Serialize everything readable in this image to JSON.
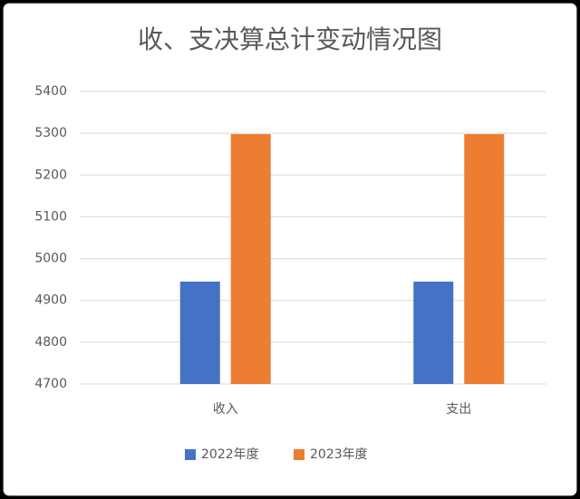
{
  "chart_data": {
    "type": "bar",
    "title": "收、支决算总计变动情况图",
    "categories": [
      "收入",
      "支出"
    ],
    "series": [
      {
        "name": "2022年度",
        "color": "#4472c4",
        "values": [
          4945,
          4945
        ]
      },
      {
        "name": "2023年度",
        "color": "#ed7d31",
        "values": [
          5298,
          5298
        ]
      }
    ],
    "ylim": [
      4700,
      5400
    ],
    "yticks": [
      4700,
      4800,
      4900,
      5000,
      5100,
      5200,
      5300,
      5400
    ],
    "grid": true,
    "legend": "bottom"
  }
}
